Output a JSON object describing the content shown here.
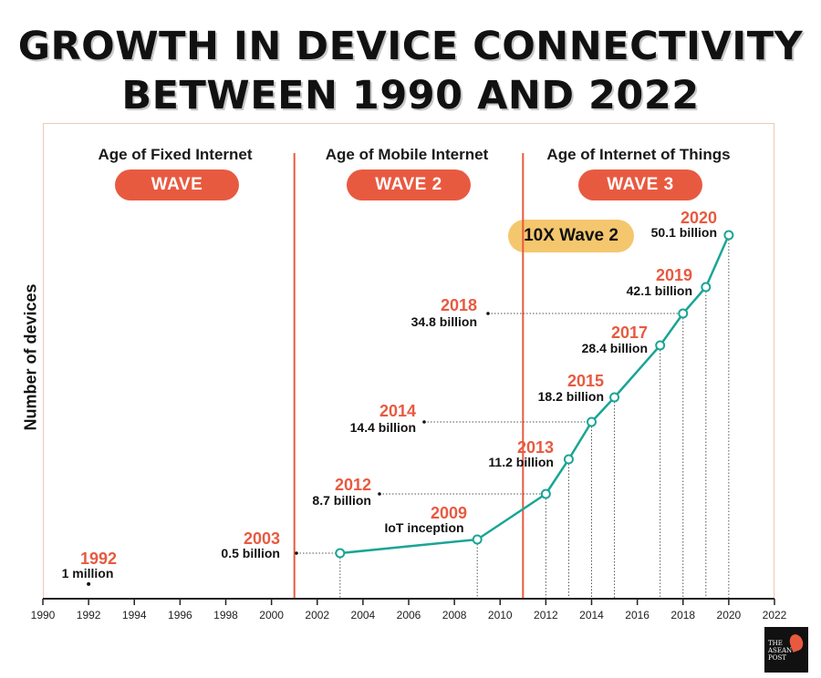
{
  "title_line1": "GROWTH IN DEVICE CONNECTIVITY",
  "title_line2": "BETWEEN 1990 AND 2022",
  "eras": [
    {
      "name": "Age of Fixed Internet",
      "wave": "WAVE"
    },
    {
      "name": "Age of Mobile Internet",
      "wave": "WAVE 2"
    },
    {
      "name": "Age of Internet of Things",
      "wave": "WAVE 3"
    }
  ],
  "badge": "10X Wave 2",
  "logo_text": "THE ASEAN POST",
  "colors": {
    "accent": "#e85a40",
    "line": "#1aa596",
    "badge": "#f4c76e"
  },
  "chart_data": {
    "type": "line",
    "ylabel": "Number of devices",
    "xlabel": "",
    "xlim": [
      1990,
      2022
    ],
    "xticks": [
      1990,
      1992,
      1994,
      1996,
      1998,
      2000,
      2002,
      2004,
      2006,
      2008,
      2010,
      2012,
      2014,
      2016,
      2018,
      2020,
      2022
    ],
    "wave_boundaries": [
      2001,
      2011
    ],
    "points": [
      {
        "year": 1992,
        "year_label": "1992",
        "value": 0.001,
        "value_label": "1 million"
      },
      {
        "year": 2003,
        "year_label": "2003",
        "value": 0.5,
        "value_label": "0.5 billion"
      },
      {
        "year": 2009,
        "year_label": "2009",
        "value": 1.8,
        "value_label": "IoT inception"
      },
      {
        "year": 2012,
        "year_label": "2012",
        "value": 8.7,
        "value_label": "8.7 billion"
      },
      {
        "year": 2013,
        "year_label": "2013",
        "value": 11.2,
        "value_label": "11.2 billion"
      },
      {
        "year": 2014,
        "year_label": "2014",
        "value": 14.4,
        "value_label": "14.4 billion"
      },
      {
        "year": 2015,
        "year_label": "2015",
        "value": 18.2,
        "value_label": "18.2 billion"
      },
      {
        "year": 2017,
        "year_label": "2017",
        "value": 28.4,
        "value_label": "28.4 billion"
      },
      {
        "year": 2018,
        "year_label": "2018",
        "value": 34.8,
        "value_label": "34.8 billion"
      },
      {
        "year": 2019,
        "year_label": "2019",
        "value": 42.1,
        "value_label": "42.1 billion"
      },
      {
        "year": 2020,
        "year_label": "2020",
        "value": 50.1,
        "value_label": "50.1 billion"
      }
    ]
  }
}
